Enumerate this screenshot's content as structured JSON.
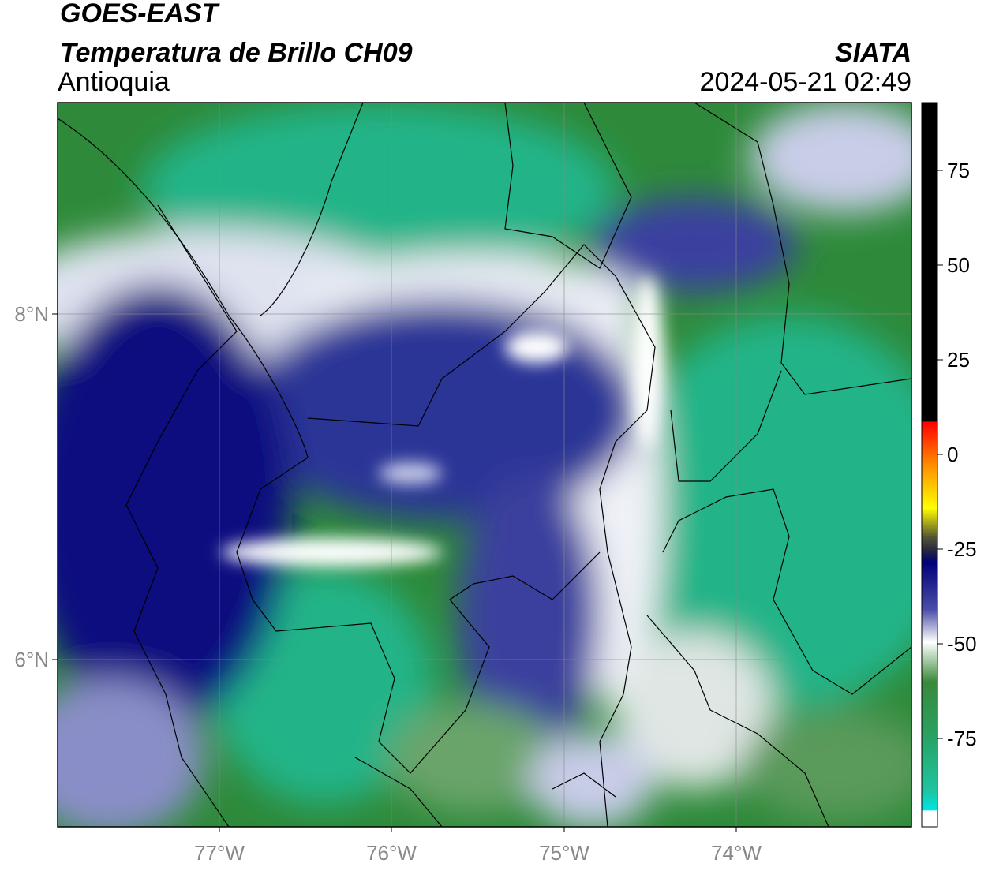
{
  "header": {
    "title": "GOES-EAST",
    "subtitle": "Temperatura de Brillo CH09",
    "region": "Antioquia",
    "source": "SIATA",
    "timestamp": "2024-05-21 02:49"
  },
  "map": {
    "lat_ticks": [
      "8°N",
      "6°N"
    ],
    "lon_ticks": [
      "77°W",
      "76°W",
      "75°W",
      "74°W"
    ]
  },
  "colorbar": {
    "ticks": [
      75,
      50,
      25,
      0,
      -25,
      -50,
      -75
    ]
  }
}
